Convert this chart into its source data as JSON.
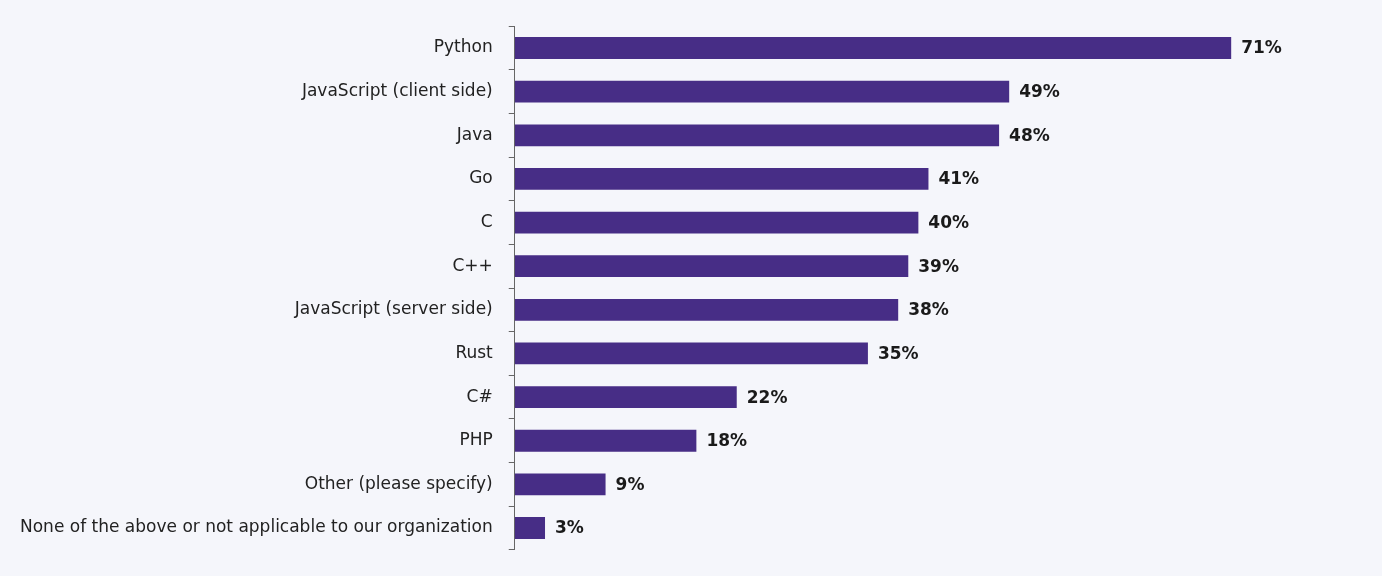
{
  "chart_data": {
    "type": "bar",
    "orientation": "horizontal",
    "categories": [
      "Python",
      "JavaScript (client side)",
      "Java",
      "Go",
      "C",
      "C++",
      "JavaScript (server side)",
      "Rust",
      "C#",
      "PHP",
      "Other (please specify)",
      "None of the above or not applicable to our organization"
    ],
    "values": [
      71,
      49,
      48,
      41,
      40,
      39,
      38,
      35,
      22,
      18,
      9,
      3
    ],
    "value_labels": [
      "71%",
      "49%",
      "48%",
      "41%",
      "40%",
      "39%",
      "38%",
      "35%",
      "22%",
      "18%",
      "9%",
      "3%"
    ],
    "color": "#472d86",
    "tick_labels": "y"
  }
}
